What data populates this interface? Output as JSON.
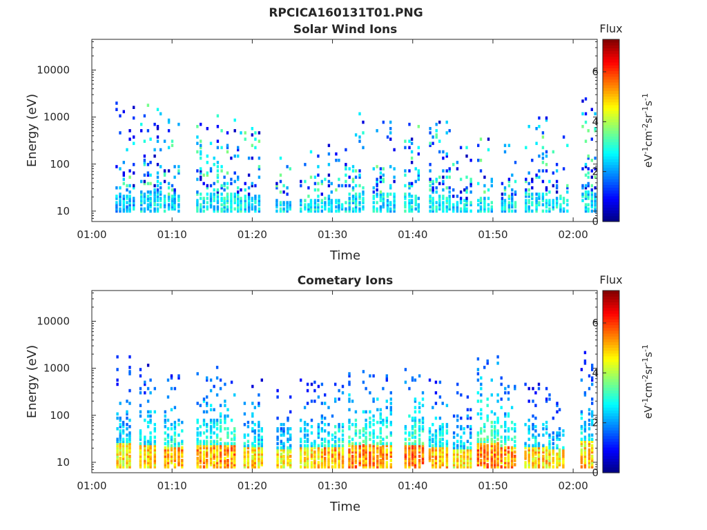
{
  "figure": {
    "main_title": "RPCICA160131T01.PNG"
  },
  "colormap": "jet",
  "chart_data": [
    {
      "type": "heatmap",
      "title": "Solar Wind Ions",
      "xlabel": "Time",
      "ylabel": "Energy (eV)",
      "x_scale": "time",
      "y_scale": "log",
      "xlim": [
        "01:00",
        "02:03"
      ],
      "ylim": [
        6,
        45000
      ],
      "xticks": [
        "01:00",
        "01:10",
        "01:20",
        "01:30",
        "01:40",
        "01:50",
        "02:00"
      ],
      "yticks": [
        "10",
        "100",
        "1000",
        "10000"
      ],
      "colorbar": {
        "title": "Flux",
        "label_parts": [
          "eV",
          "-1",
          "cm",
          "-2",
          "sr",
          "-1",
          "s",
          "-1"
        ],
        "range": [
          0,
          7.3
        ],
        "ticks": [
          "0",
          "2",
          "4",
          "6"
        ]
      },
      "bursts": [
        {
          "time": "01:04",
          "energy_low": 10,
          "energy_high": 2200,
          "flux_core": 3.0
        },
        {
          "time": "01:07",
          "energy_low": 10,
          "energy_high": 1800,
          "flux_core": 3.3
        },
        {
          "time": "01:10",
          "energy_low": 10,
          "energy_high": 900,
          "flux_core": 3.2
        },
        {
          "time": "01:14",
          "energy_low": 10,
          "energy_high": 1500,
          "flux_core": 3.3
        },
        {
          "time": "01:17",
          "energy_low": 10,
          "energy_high": 1000,
          "flux_core": 3.4
        },
        {
          "time": "01:20",
          "energy_low": 10,
          "energy_high": 600,
          "flux_core": 3.2
        },
        {
          "time": "01:24",
          "energy_low": 10,
          "energy_high": 300,
          "flux_core": 3.3
        },
        {
          "time": "01:27",
          "energy_low": 10,
          "energy_high": 300,
          "flux_core": 3.3
        },
        {
          "time": "01:30",
          "energy_low": 10,
          "energy_high": 300,
          "flux_core": 3.3
        },
        {
          "time": "01:33",
          "energy_low": 10,
          "energy_high": 1200,
          "flux_core": 3.3
        },
        {
          "time": "01:36",
          "energy_low": 10,
          "energy_high": 1000,
          "flux_core": 3.3
        },
        {
          "time": "01:40",
          "energy_low": 10,
          "energy_high": 800,
          "flux_core": 3.3
        },
        {
          "time": "01:43",
          "energy_low": 10,
          "energy_high": 800,
          "flux_core": 3.4
        },
        {
          "time": "01:46",
          "energy_low": 10,
          "energy_high": 300,
          "flux_core": 3.3
        },
        {
          "time": "01:49",
          "energy_low": 10,
          "energy_high": 500,
          "flux_core": 3.3
        },
        {
          "time": "01:52",
          "energy_low": 10,
          "energy_high": 300,
          "flux_core": 3.3
        },
        {
          "time": "01:55",
          "energy_low": 10,
          "energy_high": 1000,
          "flux_core": 3.3
        },
        {
          "time": "01:58",
          "energy_low": 10,
          "energy_high": 400,
          "flux_core": 3.3
        },
        {
          "time": "02:02",
          "energy_low": 10,
          "energy_high": 2500,
          "flux_core": 3.3
        }
      ]
    },
    {
      "type": "heatmap",
      "title": "Cometary Ions",
      "xlabel": "Time",
      "ylabel": "Energy (eV)",
      "x_scale": "time",
      "y_scale": "log",
      "xlim": [
        "01:00",
        "02:03"
      ],
      "ylim": [
        6,
        45000
      ],
      "xticks": [
        "01:00",
        "01:10",
        "01:20",
        "01:30",
        "01:40",
        "01:50",
        "02:00"
      ],
      "yticks": [
        "10",
        "100",
        "1000",
        "10000"
      ],
      "colorbar": {
        "title": "Flux",
        "label_parts": [
          "eV",
          "-1",
          "cm",
          "-2",
          "sr",
          "-1",
          "s",
          "-1"
        ],
        "range": [
          0,
          7.3
        ],
        "ticks": [
          "0",
          "2",
          "4",
          "6"
        ]
      },
      "bursts": [
        {
          "time": "01:04",
          "energy_low": 8,
          "energy_high": 2000,
          "flux_core": 5.4
        },
        {
          "time": "01:07",
          "energy_low": 8,
          "energy_high": 1200,
          "flux_core": 5.6
        },
        {
          "time": "01:10",
          "energy_low": 8,
          "energy_high": 800,
          "flux_core": 5.9
        },
        {
          "time": "01:14",
          "energy_low": 8,
          "energy_high": 1400,
          "flux_core": 5.9
        },
        {
          "time": "01:17",
          "energy_low": 8,
          "energy_high": 900,
          "flux_core": 6.1
        },
        {
          "time": "01:20",
          "energy_low": 8,
          "energy_high": 600,
          "flux_core": 5.6
        },
        {
          "time": "01:24",
          "energy_low": 8,
          "energy_high": 400,
          "flux_core": 5.4
        },
        {
          "time": "01:27",
          "energy_low": 8,
          "energy_high": 600,
          "flux_core": 5.6
        },
        {
          "time": "01:30",
          "energy_low": 8,
          "energy_high": 600,
          "flux_core": 5.9
        },
        {
          "time": "01:33",
          "energy_low": 8,
          "energy_high": 900,
          "flux_core": 6.2
        },
        {
          "time": "01:36",
          "energy_low": 8,
          "energy_high": 1100,
          "flux_core": 6.0
        },
        {
          "time": "01:40",
          "energy_low": 8,
          "energy_high": 1000,
          "flux_core": 6.2
        },
        {
          "time": "01:43",
          "energy_low": 8,
          "energy_high": 600,
          "flux_core": 5.8
        },
        {
          "time": "01:46",
          "energy_low": 8,
          "energy_high": 500,
          "flux_core": 5.4
        },
        {
          "time": "01:49",
          "energy_low": 8,
          "energy_high": 1800,
          "flux_core": 6.2
        },
        {
          "time": "01:52",
          "energy_low": 8,
          "energy_high": 700,
          "flux_core": 6.0
        },
        {
          "time": "01:55",
          "energy_low": 8,
          "energy_high": 600,
          "flux_core": 5.6
        },
        {
          "time": "01:58",
          "energy_low": 8,
          "energy_high": 400,
          "flux_core": 5.4
        },
        {
          "time": "02:02",
          "energy_low": 8,
          "energy_high": 2500,
          "flux_core": 5.6
        }
      ]
    }
  ]
}
